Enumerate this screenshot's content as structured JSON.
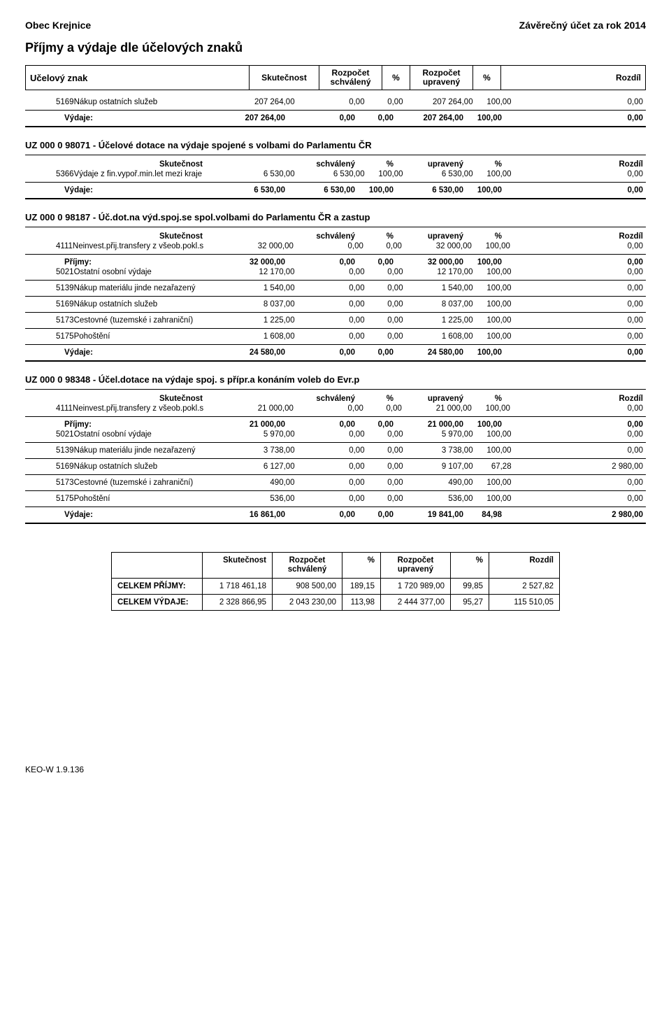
{
  "header": {
    "left": "Obec Krejnice",
    "right": "Závěrečný účet za rok 2014"
  },
  "main_title": "Příjmy a výdaje dle účelových znaků",
  "outer_header": {
    "label": "Učelový znak",
    "skut": "Skutečnost",
    "roz_schv_1": "Rozpočet",
    "roz_schv_2": "schválený",
    "pct": "%",
    "roz_upr_1": "Rozpočet",
    "roz_upr_2": "upravený",
    "pct2": "%",
    "rozdil": "Rozdíl"
  },
  "col_hdr": {
    "skut": "Skutečnost",
    "schv": "schválený",
    "pct": "%",
    "upr": "upravený",
    "pct2": "%",
    "rozdil": "Rozdíl"
  },
  "labels": {
    "prijmy": "Příjmy:",
    "vydaje": "Výdaje:"
  },
  "block0": {
    "row": {
      "code": "5169",
      "desc": "Nákup ostatních služeb",
      "sk": "207 264,00",
      "schv": "0,00",
      "p1": "0,00",
      "upr": "207 264,00",
      "p2": "100,00",
      "roz": "0,00"
    },
    "total": {
      "sk": "207 264,00",
      "schv": "0,00",
      "p1": "0,00",
      "upr": "207 264,00",
      "p2": "100,00",
      "roz": "0,00"
    }
  },
  "sec1": {
    "title": "UZ 000 0   98071  - Účelové dotace na výdaje spojené s volbami do Parlamentu ČR",
    "row": {
      "code": "5366",
      "desc": "Výdaje z fin.vypoř.min.let mezi kraje",
      "sk": "6 530,00",
      "schv": "6 530,00",
      "p1": "100,00",
      "upr": "6 530,00",
      "p2": "100,00",
      "roz": "0,00"
    },
    "total": {
      "sk": "6 530,00",
      "schv": "6 530,00",
      "p1": "100,00",
      "upr": "6 530,00",
      "p2": "100,00",
      "roz": "0,00"
    }
  },
  "sec2": {
    "title": "UZ 000 0   98187  - Úč.dot.na výd.spoj.se spol.volbami do Parlamentu ČR a zastup",
    "income_row": {
      "code": "4111",
      "desc": "Neinvest.přij.transfery z všeob.pokl.s",
      "sk": "32 000,00",
      "schv": "0,00",
      "p1": "0,00",
      "upr": "32 000,00",
      "p2": "100,00",
      "roz": "0,00"
    },
    "income_total": {
      "sk": "32 000,00",
      "schv": "0,00",
      "p1": "0,00",
      "upr": "32 000,00",
      "p2": "100,00",
      "roz": "0,00"
    },
    "rows": [
      {
        "code": "5021",
        "desc": "Ostatní osobní výdaje",
        "sk": "12 170,00",
        "schv": "0,00",
        "p1": "0,00",
        "upr": "12 170,00",
        "p2": "100,00",
        "roz": "0,00"
      },
      {
        "code": "5139",
        "desc": "Nákup materiálu jinde nezařazený",
        "sk": "1 540,00",
        "schv": "0,00",
        "p1": "0,00",
        "upr": "1 540,00",
        "p2": "100,00",
        "roz": "0,00"
      },
      {
        "code": "5169",
        "desc": "Nákup ostatních služeb",
        "sk": "8 037,00",
        "schv": "0,00",
        "p1": "0,00",
        "upr": "8 037,00",
        "p2": "100,00",
        "roz": "0,00"
      },
      {
        "code": "5173",
        "desc": "Cestovné (tuzemské i zahraniční)",
        "sk": "1 225,00",
        "schv": "0,00",
        "p1": "0,00",
        "upr": "1 225,00",
        "p2": "100,00",
        "roz": "0,00"
      },
      {
        "code": "5175",
        "desc": "Pohoštění",
        "sk": "1 608,00",
        "schv": "0,00",
        "p1": "0,00",
        "upr": "1 608,00",
        "p2": "100,00",
        "roz": "0,00"
      }
    ],
    "exp_total": {
      "sk": "24 580,00",
      "schv": "0,00",
      "p1": "0,00",
      "upr": "24 580,00",
      "p2": "100,00",
      "roz": "0,00"
    }
  },
  "sec3": {
    "title": "UZ 000 0   98348  - Účel.dotace na výdaje spoj. s přípr.a konáním voleb do Evr.p",
    "income_row": {
      "code": "4111",
      "desc": "Neinvest.přij.transfery z všeob.pokl.s",
      "sk": "21 000,00",
      "schv": "0,00",
      "p1": "0,00",
      "upr": "21 000,00",
      "p2": "100,00",
      "roz": "0,00"
    },
    "income_total": {
      "sk": "21 000,00",
      "schv": "0,00",
      "p1": "0,00",
      "upr": "21 000,00",
      "p2": "100,00",
      "roz": "0,00"
    },
    "rows": [
      {
        "code": "5021",
        "desc": "Ostatní osobní výdaje",
        "sk": "5 970,00",
        "schv": "0,00",
        "p1": "0,00",
        "upr": "5 970,00",
        "p2": "100,00",
        "roz": "0,00"
      },
      {
        "code": "5139",
        "desc": "Nákup materiálu jinde nezařazený",
        "sk": "3 738,00",
        "schv": "0,00",
        "p1": "0,00",
        "upr": "3 738,00",
        "p2": "100,00",
        "roz": "0,00"
      },
      {
        "code": "5169",
        "desc": "Nákup ostatních služeb",
        "sk": "6 127,00",
        "schv": "0,00",
        "p1": "0,00",
        "upr": "9 107,00",
        "p2": "67,28",
        "roz": "2 980,00"
      },
      {
        "code": "5173",
        "desc": "Cestovné (tuzemské i zahraniční)",
        "sk": "490,00",
        "schv": "0,00",
        "p1": "0,00",
        "upr": "490,00",
        "p2": "100,00",
        "roz": "0,00"
      },
      {
        "code": "5175",
        "desc": "Pohoštění",
        "sk": "536,00",
        "schv": "0,00",
        "p1": "0,00",
        "upr": "536,00",
        "p2": "100,00",
        "roz": "0,00"
      }
    ],
    "exp_total": {
      "sk": "16 861,00",
      "schv": "0,00",
      "p1": "0,00",
      "upr": "19 841,00",
      "p2": "84,98",
      "roz": "2 980,00"
    }
  },
  "totals": {
    "hdr": {
      "skut": "Skutečnost",
      "schv1": "Rozpočet",
      "schv2": "schválený",
      "pct": "%",
      "upr1": "Rozpočet",
      "upr2": "upravený",
      "pct2": "%",
      "rozdil": "Rozdíl"
    },
    "prijmy": {
      "label": "CELKEM PŘÍJMY:",
      "sk": "1 718 461,18",
      "schv": "908 500,00",
      "p1": "189,15",
      "upr": "1 720 989,00",
      "p2": "99,85",
      "roz": "2 527,82"
    },
    "vydaje": {
      "label": "CELKEM VÝDAJE:",
      "sk": "2 328 866,95",
      "schv": "2 043 230,00",
      "p1": "113,98",
      "upr": "2 444 377,00",
      "p2": "95,27",
      "roz": "115 510,05"
    }
  },
  "footer": "KEO-W 1.9.136"
}
